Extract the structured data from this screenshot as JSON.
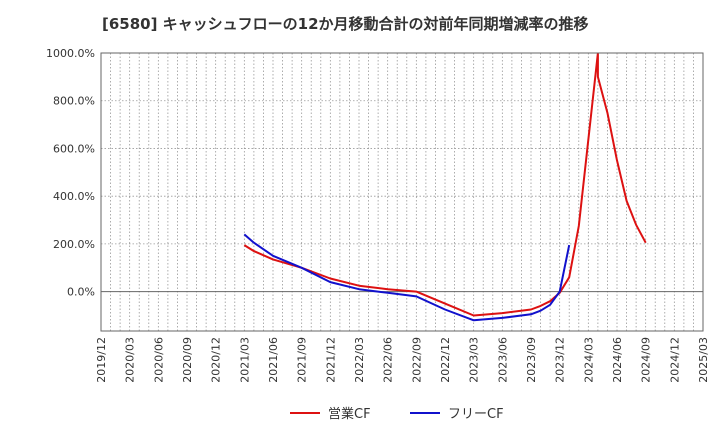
{
  "chart_data": {
    "type": "line",
    "title": "[6580]  キャッシュフローの12か月移動合計の対前年同期増減率の推移",
    "xlabel": "",
    "ylabel": "",
    "x_ticks": [
      "2019/12",
      "2020/03",
      "2020/06",
      "2020/09",
      "2020/12",
      "2021/03",
      "2021/06",
      "2021/09",
      "2021/12",
      "2022/03",
      "2022/06",
      "2022/09",
      "2022/12",
      "2023/03",
      "2023/06",
      "2023/09",
      "2023/12",
      "2024/03",
      "2024/06",
      "2024/09",
      "2024/12",
      "2025/03"
    ],
    "y_ticks": [
      "1000.0%",
      "800.0%",
      "600.0%",
      "400.0%",
      "200.0%",
      "0.0%"
    ],
    "y_tick_values": [
      1000,
      800,
      600,
      400,
      200,
      0
    ],
    "ylim": [
      -165,
      1000
    ],
    "xlim_months": [
      0,
      63
    ],
    "grid": true,
    "legend_position": "bottom-center",
    "series": [
      {
        "name": "営業CF",
        "color": "#dd1111",
        "points": [
          {
            "x": "2021/03",
            "y": 195
          },
          {
            "x": "2021/04",
            "y": 170
          },
          {
            "x": "2021/06",
            "y": 135
          },
          {
            "x": "2021/09",
            "y": 100
          },
          {
            "x": "2021/12",
            "y": 55
          },
          {
            "x": "2022/03",
            "y": 25
          },
          {
            "x": "2022/06",
            "y": 10
          },
          {
            "x": "2022/09",
            "y": 0
          },
          {
            "x": "2022/12",
            "y": -50
          },
          {
            "x": "2023/03",
            "y": -100
          },
          {
            "x": "2023/06",
            "y": -90
          },
          {
            "x": "2023/09",
            "y": -75
          },
          {
            "x": "2023/10",
            "y": -60
          },
          {
            "x": "2023/11",
            "y": -40
          },
          {
            "x": "2023/12",
            "y": -5
          },
          {
            "x": "2024/01",
            "y": 60
          },
          {
            "x": "2024/02",
            "y": 275
          },
          {
            "x": "2024/04",
            "y": 1000
          },
          {
            "x": "2024/04",
            "y": 900
          },
          {
            "x": "2024/05",
            "y": 750
          },
          {
            "x": "2024/06",
            "y": 550
          },
          {
            "x": "2024/07",
            "y": 380
          },
          {
            "x": "2024/08",
            "y": 280
          },
          {
            "x": "2024/09",
            "y": 205
          }
        ]
      },
      {
        "name": "フリーCF",
        "color": "#1111cc",
        "points": [
          {
            "x": "2021/03",
            "y": 240
          },
          {
            "x": "2021/04",
            "y": 205
          },
          {
            "x": "2021/06",
            "y": 150
          },
          {
            "x": "2021/09",
            "y": 100
          },
          {
            "x": "2021/12",
            "y": 40
          },
          {
            "x": "2022/03",
            "y": 10
          },
          {
            "x": "2022/06",
            "y": -5
          },
          {
            "x": "2022/09",
            "y": -20
          },
          {
            "x": "2022/12",
            "y": -75
          },
          {
            "x": "2023/03",
            "y": -120
          },
          {
            "x": "2023/06",
            "y": -110
          },
          {
            "x": "2023/09",
            "y": -95
          },
          {
            "x": "2023/10",
            "y": -80
          },
          {
            "x": "2023/11",
            "y": -55
          },
          {
            "x": "2023/12",
            "y": 0
          },
          {
            "x": "2024/01",
            "y": 195
          }
        ]
      }
    ]
  }
}
